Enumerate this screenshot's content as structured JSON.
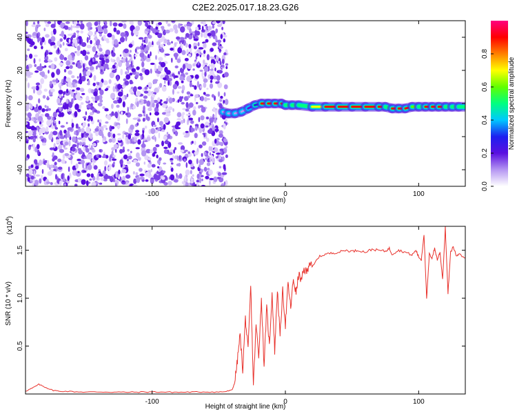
{
  "title": "C2E2.2025.017.18.23.G26",
  "chart_data": [
    {
      "type": "heatmap",
      "xlabel": "Height of straight line (km)",
      "ylabel": "Frequency (Hz)",
      "xlim": [
        -195,
        135
      ],
      "ylim": [
        -50,
        50
      ],
      "xticks": [
        -100,
        0,
        100
      ],
      "yticks": [
        -40,
        -20,
        0,
        20,
        40
      ],
      "noise_region": {
        "x": [
          -195,
          -47
        ],
        "y": [
          -50,
          50
        ]
      },
      "signal_track": {
        "x": [
          -47,
          -43,
          -38,
          -33,
          -28,
          -23,
          -18,
          -13,
          -8,
          -3,
          0,
          5,
          10,
          20,
          30,
          40,
          50,
          60,
          70,
          75,
          80,
          85,
          90,
          95,
          100,
          105,
          110,
          115,
          120,
          125,
          130,
          135
        ],
        "freq": [
          -5,
          -6,
          -6,
          -5,
          -3,
          -1,
          0,
          0,
          0,
          0,
          -1,
          -1,
          -1,
          -2,
          -2,
          -2,
          -2,
          -2,
          -2,
          -2,
          -3,
          -3,
          -3,
          -2,
          -2,
          -2,
          -2,
          -2,
          -2,
          -2,
          -2,
          -2
        ],
        "amplitude": [
          0.1,
          0.1,
          0.15,
          0.15,
          0.25,
          0.3,
          0.9,
          0.92,
          0.9,
          0.9,
          0.5,
          0.5,
          0.55,
          0.75,
          0.95,
          0.95,
          0.95,
          0.95,
          0.9,
          0.5,
          0.9,
          0.95,
          0.95,
          0.6,
          0.55,
          0.9,
          0.9,
          0.9,
          0.55,
          0.5,
          0.5,
          0.5
        ]
      },
      "colorbar": {
        "label": "Normalized spectral amplitude",
        "range": [
          0,
          1
        ],
        "ticks": [
          "0.0",
          "0.2",
          "0.4",
          "0.6",
          "0.8"
        ],
        "tick_values": [
          0,
          0.2,
          0.4,
          0.6,
          0.8
        ],
        "colors": [
          "#ffffff",
          "#b596f2",
          "#5a10e0",
          "#1e1ef0",
          "#00c8ff",
          "#00ff80",
          "#60ff00",
          "#ffff00",
          "#ff8000",
          "#ff0000",
          "#ff0080"
        ]
      }
    },
    {
      "type": "line",
      "xlabel": "Height of straight line (km)",
      "ylabel": "SNR (10 * v/v)",
      "y_multiplier": "(x10",
      "y_multiplier_exp": "4",
      "y_multiplier_close": ")",
      "xlim": [
        -195,
        135
      ],
      "ylim": [
        0,
        17500
      ],
      "xticks": [
        -100,
        0,
        100
      ],
      "yticks": [
        5000,
        10000,
        15000
      ],
      "ytick_labels": [
        "0.5",
        "1.0",
        "1.5"
      ],
      "line_color": "#e8302a",
      "series": [
        {
          "x": [
            -195,
            -190,
            -185,
            -180,
            -175,
            -170,
            -160,
            -150,
            -140,
            -130,
            -120,
            -110,
            -100,
            -90,
            -80,
            -70,
            -60,
            -50,
            -45,
            -40,
            -38,
            -36,
            -34,
            -32,
            -30,
            -28,
            -26,
            -24,
            -22,
            -20,
            -18,
            -16,
            -14,
            -12,
            -10,
            -8,
            -6,
            -4,
            -2,
            0,
            2,
            4,
            6,
            8,
            10,
            12,
            14,
            16,
            18,
            20,
            25,
            30,
            35,
            40,
            45,
            50,
            55,
            60,
            65,
            70,
            75,
            78,
            80,
            85,
            90,
            95,
            98,
            100,
            102,
            104,
            106,
            108,
            110,
            112,
            114,
            116,
            118,
            120,
            122,
            124,
            126,
            128,
            130,
            135
          ],
          "y": [
            300,
            600,
            1000,
            700,
            400,
            300,
            250,
            200,
            220,
            200,
            180,
            200,
            220,
            200,
            180,
            200,
            220,
            200,
            250,
            400,
            1200,
            3500,
            6200,
            2500,
            8000,
            4500,
            11300,
            900,
            7200,
            4000,
            10000,
            3000,
            9000,
            5000,
            10500,
            4500,
            11000,
            6000,
            10800,
            7200,
            11500,
            9000,
            12000,
            10500,
            12500,
            11800,
            13000,
            12700,
            13800,
            13200,
            14300,
            14600,
            14700,
            14800,
            15000,
            14900,
            15000,
            14800,
            15100,
            15000,
            14900,
            15200,
            14600,
            15000,
            14800,
            14500,
            15000,
            14300,
            14000,
            16700,
            9900,
            14600,
            14200,
            15200,
            14000,
            14800,
            12000,
            17400,
            10500,
            14800,
            15400,
            14500,
            14600,
            14200
          ]
        }
      ]
    }
  ]
}
